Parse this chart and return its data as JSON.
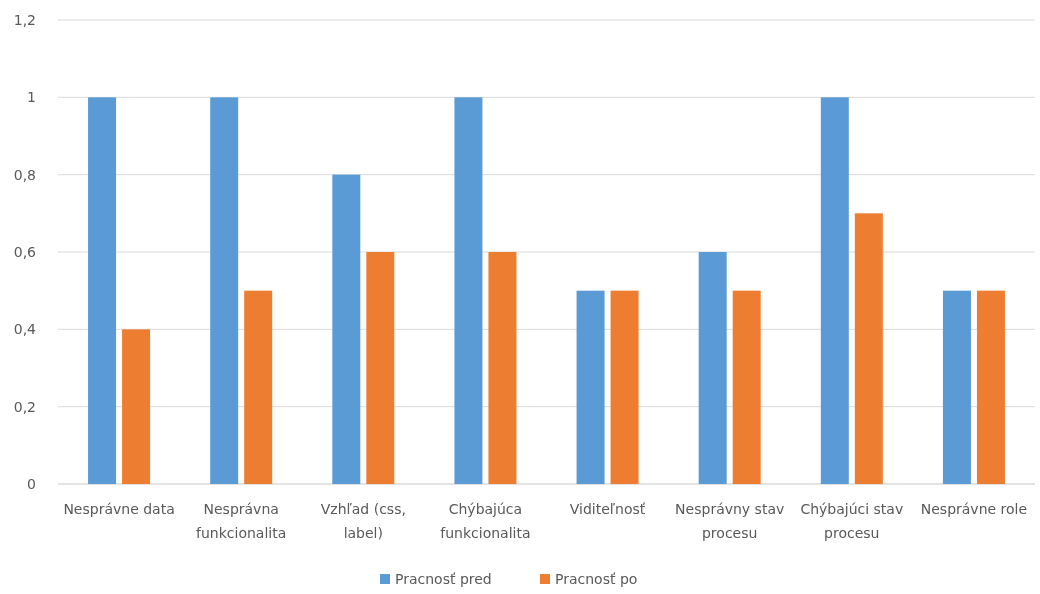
{
  "chart_data": {
    "type": "bar",
    "categories": [
      "Nesprávne data",
      "Nesprávna funkcionalita",
      "Vzhľad (css, label)",
      "Chýbajúca funkcionalita",
      "Viditeľnosť",
      "Nesprávny stav procesu",
      "Chýbajúci stav procesu",
      "Nesprávne role"
    ],
    "series": [
      {
        "name": "Pracnosť pred",
        "color": "#5b9bd5",
        "values": [
          1,
          1,
          0.8,
          1,
          0.5,
          0.6,
          1,
          0.5
        ]
      },
      {
        "name": "Pracnosť po",
        "color": "#ed7d31",
        "values": [
          0.4,
          0.5,
          0.6,
          0.6,
          0.5,
          0.5,
          0.7,
          0.5
        ]
      }
    ],
    "ylim": [
      0,
      1.2
    ],
    "yticks": [
      0,
      {
        "value": 0.2,
        "label": "0,2"
      },
      {
        "value": 0.4,
        "label": "0,4"
      },
      {
        "value": 0.6,
        "label": "0,6"
      },
      {
        "value": 0.8,
        "label": "0,8"
      },
      1,
      {
        "value": 1.2,
        "label": "1,2"
      }
    ],
    "grid": "y",
    "legend": "bottom"
  }
}
